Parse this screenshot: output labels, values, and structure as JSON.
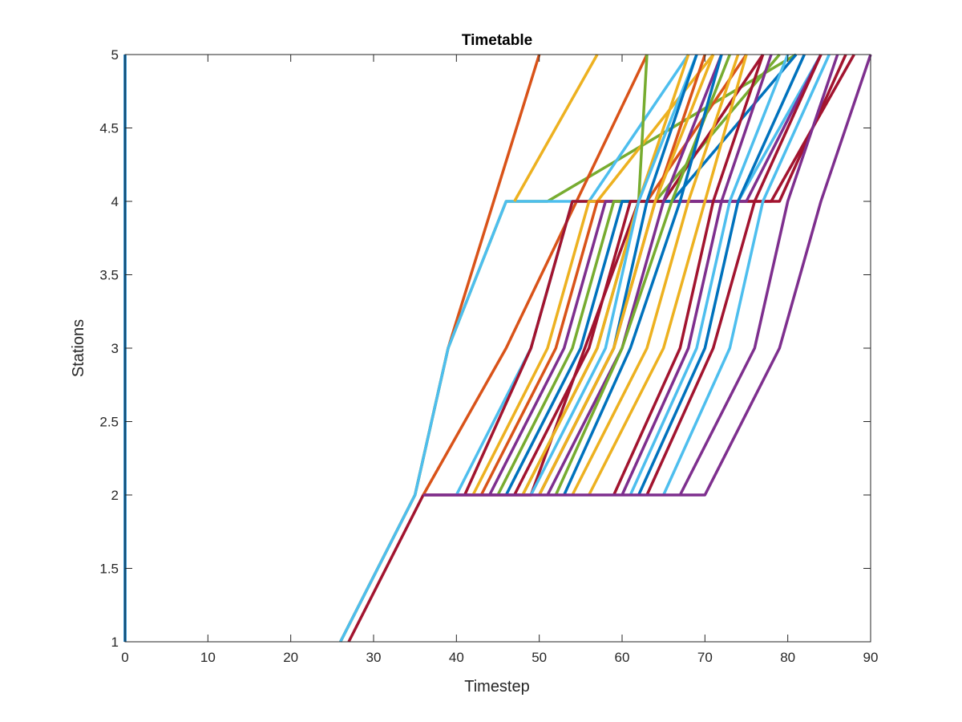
{
  "chart_data": {
    "type": "line",
    "title": "Timetable",
    "xlabel": "Timestep",
    "ylabel": "Stations",
    "xlim": [
      0,
      90
    ],
    "ylim": [
      1,
      5
    ],
    "xticks": [
      0,
      10,
      20,
      30,
      40,
      50,
      60,
      70,
      80,
      90
    ],
    "yticks": [
      1,
      1.5,
      2,
      2.5,
      3,
      3.5,
      4,
      4.5,
      5
    ],
    "xtick_labels": [
      "0",
      "10",
      "20",
      "30",
      "40",
      "50",
      "60",
      "70",
      "80",
      "90"
    ],
    "ytick_labels": [
      "1",
      "1.5",
      "2",
      "2.5",
      "3",
      "3.5",
      "4",
      "4.5",
      "5"
    ],
    "grid": false,
    "palette": [
      "#0072BD",
      "#D95319",
      "#EDB120",
      "#7E2F8E",
      "#77AC30",
      "#4DBEEE",
      "#A2142F"
    ],
    "series": [
      {
        "color": "#0072BD",
        "x": [
          0,
          0
        ],
        "y": [
          1,
          5
        ]
      },
      {
        "color": "#D95319",
        "x": [
          26,
          35,
          39,
          50
        ],
        "y": [
          1,
          2,
          3,
          5
        ]
      },
      {
        "color": "#77AC30",
        "x": [
          26,
          35,
          39,
          46,
          51,
          81
        ],
        "y": [
          1,
          2,
          3,
          4,
          4,
          5
        ]
      },
      {
        "color": "#4DBEEE",
        "x": [
          26,
          35,
          39,
          46,
          74,
          84
        ],
        "y": [
          1,
          2,
          3,
          4,
          4,
          5
        ]
      },
      {
        "color": "#A2142F",
        "x": [
          27,
          36,
          49,
          62,
          79,
          87
        ],
        "y": [
          1,
          2,
          2,
          4,
          4,
          5
        ]
      },
      {
        "color": "#D95319",
        "x": [
          36,
          46,
          63
        ],
        "y": [
          2,
          3,
          5
        ]
      },
      {
        "color": "#EDB120",
        "x": [
          47,
          57
        ],
        "y": [
          4,
          5
        ]
      },
      {
        "color": "#4DBEEE",
        "x": [
          40,
          49,
          54,
          56,
          68
        ],
        "y": [
          2,
          3,
          4,
          4,
          5
        ]
      },
      {
        "color": "#A2142F",
        "x": [
          41,
          49,
          54,
          63,
          78,
          88
        ],
        "y": [
          2,
          3,
          4,
          4,
          4,
          5
        ]
      },
      {
        "color": "#EDB120",
        "x": [
          42,
          51,
          56,
          57,
          71
        ],
        "y": [
          2,
          3,
          4,
          4,
          5
        ]
      },
      {
        "color": "#D95319",
        "x": [
          43,
          52,
          57,
          63,
          75
        ],
        "y": [
          2,
          3,
          4,
          4,
          5
        ]
      },
      {
        "color": "#7E2F8E",
        "x": [
          44,
          53,
          58,
          75,
          84
        ],
        "y": [
          2,
          3,
          4,
          4,
          5
        ]
      },
      {
        "color": "#77AC30",
        "x": [
          45,
          54,
          59,
          64,
          79
        ],
        "y": [
          2,
          3,
          4,
          4,
          5
        ]
      },
      {
        "color": "#0072BD",
        "x": [
          46,
          55,
          60,
          66,
          81
        ],
        "y": [
          2,
          3,
          4,
          4,
          5
        ]
      },
      {
        "color": "#A2142F",
        "x": [
          47,
          56,
          61,
          65,
          77
        ],
        "y": [
          2,
          3,
          4,
          4,
          5
        ]
      },
      {
        "color": "#77AC30",
        "x": [
          48,
          57,
          62,
          63
        ],
        "y": [
          2,
          3,
          4,
          5
        ]
      },
      {
        "color": "#EDB120",
        "x": [
          48,
          57,
          62,
          68
        ],
        "y": [
          2,
          3,
          4,
          5
        ]
      },
      {
        "color": "#4DBEEE",
        "x": [
          49,
          58,
          62,
          69
        ],
        "y": [
          2,
          3,
          4,
          5
        ]
      },
      {
        "color": "#0072BD",
        "x": [
          50,
          59,
          63,
          69
        ],
        "y": [
          2,
          3,
          4,
          5
        ]
      },
      {
        "color": "#D95319",
        "x": [
          50,
          59,
          64,
          70
        ],
        "y": [
          2,
          3,
          4,
          5
        ]
      },
      {
        "color": "#EDB120",
        "x": [
          50,
          59,
          64,
          71
        ],
        "y": [
          2,
          3,
          4,
          5
        ]
      },
      {
        "color": "#7E2F8E",
        "x": [
          51,
          60,
          65,
          72
        ],
        "y": [
          2,
          3,
          4,
          5
        ]
      },
      {
        "color": "#77AC30",
        "x": [
          52,
          60,
          66,
          73
        ],
        "y": [
          2,
          3,
          4,
          5
        ]
      },
      {
        "color": "#0072BD",
        "x": [
          53,
          61,
          67,
          72
        ],
        "y": [
          2,
          3,
          4,
          5
        ]
      },
      {
        "color": "#EDB120",
        "x": [
          54,
          63,
          68,
          74
        ],
        "y": [
          2,
          3,
          4,
          5
        ]
      },
      {
        "color": "#EDB120",
        "x": [
          56,
          65,
          70,
          75
        ],
        "y": [
          2,
          3,
          4,
          5
        ]
      },
      {
        "color": "#A2142F",
        "x": [
          59,
          67,
          71,
          77
        ],
        "y": [
          2,
          3,
          4,
          5
        ]
      },
      {
        "color": "#7E2F8E",
        "x": [
          60,
          68,
          72,
          78
        ],
        "y": [
          2,
          3,
          4,
          5
        ]
      },
      {
        "color": "#4DBEEE",
        "x": [
          61,
          69,
          73,
          80
        ],
        "y": [
          2,
          3,
          4,
          5
        ]
      },
      {
        "color": "#0072BD",
        "x": [
          62,
          70,
          74,
          82
        ],
        "y": [
          2,
          3,
          4,
          5
        ]
      },
      {
        "color": "#A2142F",
        "x": [
          63,
          71,
          76,
          84
        ],
        "y": [
          2,
          3,
          4,
          5
        ]
      },
      {
        "color": "#4DBEEE",
        "x": [
          65,
          73,
          77,
          85
        ],
        "y": [
          2,
          3,
          4,
          5
        ]
      },
      {
        "color": "#7E2F8E",
        "x": [
          67,
          76,
          80,
          86
        ],
        "y": [
          2,
          3,
          4,
          5
        ]
      },
      {
        "color": "#7E2F8E",
        "x": [
          36,
          70,
          79,
          84,
          90
        ],
        "y": [
          2,
          2,
          3,
          4,
          5
        ]
      }
    ]
  }
}
